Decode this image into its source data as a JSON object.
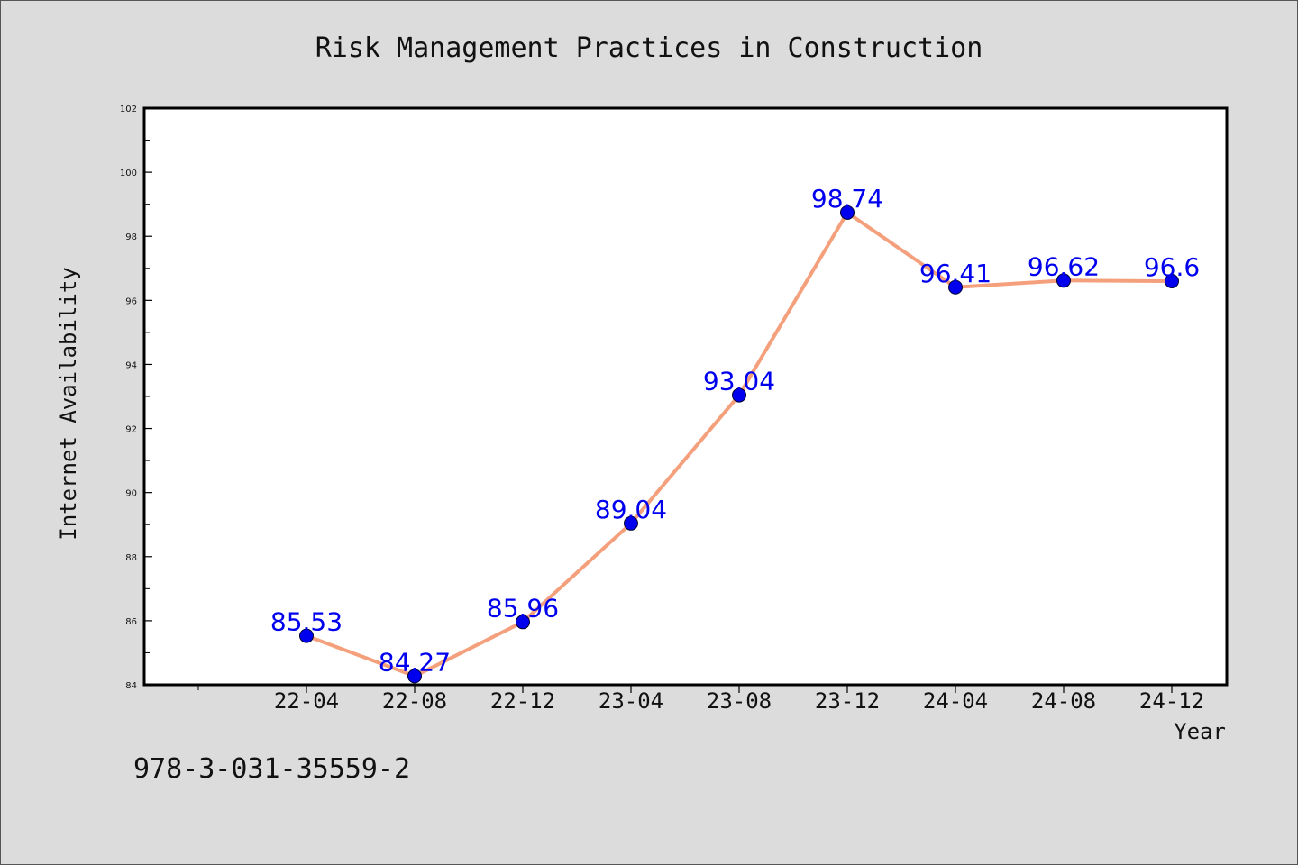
{
  "chart_data": {
    "type": "line",
    "title": "Risk Management Practices in Construction",
    "xlabel": "Year",
    "ylabel": "Internet Availability",
    "categories": [
      "22-04",
      "22-08",
      "22-12",
      "23-04",
      "23-08",
      "23-12",
      "24-04",
      "24-08",
      "24-12"
    ],
    "series": [
      {
        "values": [
          85.53,
          84.27,
          85.96,
          89.04,
          93.04,
          98.74,
          96.41,
          96.62,
          96.6
        ],
        "labels": [
          "85.53",
          "84.27",
          "85.96",
          "89.04",
          "93.04",
          "98.74",
          "96.41",
          "96.62",
          "96.6"
        ]
      }
    ],
    "ylim": [
      84,
      102
    ],
    "yticks": [
      "84",
      "86",
      "88",
      "90",
      "92",
      "94",
      "96",
      "98",
      "100",
      "102"
    ],
    "line_color": "#f4a07c",
    "marker_color": "#0000ee",
    "label_color": "#0000ee",
    "grid": false,
    "legend": "none"
  },
  "footer": {
    "identifier": "978-3-031-35559-2"
  }
}
